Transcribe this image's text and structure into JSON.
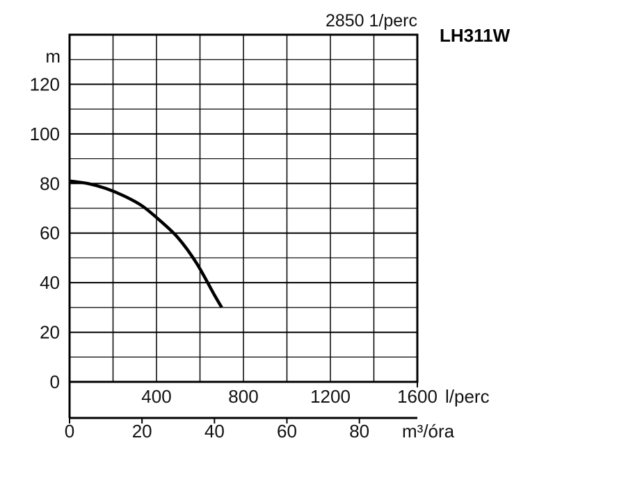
{
  "chart_data": {
    "type": "line",
    "model": "LH311W",
    "speed_label": "2850 1/perc",
    "y_unit_label": "m",
    "x_primary_unit_label": "m³/óra",
    "x_secondary_unit_label": "l/perc",
    "ylim": [
      0,
      140
    ],
    "xlim_m3h": [
      0,
      96
    ],
    "xlim_lpm": [
      0,
      1600
    ],
    "y_ticks": [
      "0",
      "20",
      "40",
      "60",
      "80",
      "100",
      "120"
    ],
    "y_tick_values": [
      0,
      20,
      40,
      60,
      80,
      100,
      120
    ],
    "x_ticks_m3h": [
      "0",
      "20",
      "40",
      "60",
      "80"
    ],
    "x_tick_values_m3h": [
      0,
      20,
      40,
      60,
      80
    ],
    "x_ticks_lpm": [
      "400",
      "800",
      "1200",
      "1600"
    ],
    "x_tick_values_lpm": [
      400,
      800,
      1200,
      1600
    ],
    "grid": true,
    "series": [
      {
        "x": [
          0,
          5,
          10,
          15,
          20,
          25,
          30,
          35,
          40,
          42
        ],
        "y": [
          81,
          80,
          78,
          75,
          71,
          65,
          58,
          48,
          35,
          30
        ]
      }
    ]
  }
}
